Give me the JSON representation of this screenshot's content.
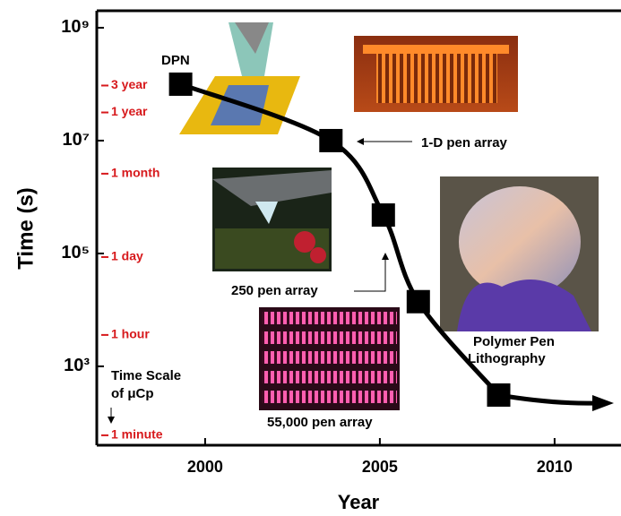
{
  "chart_data": {
    "type": "line",
    "x_label": "Year",
    "y_label": "Time (s)",
    "log_y": true,
    "x": [
      1999.3,
      2003.6,
      2005.1,
      2006.1,
      2008.4
    ],
    "series": [
      {
        "name": "DPN throughput",
        "color": "#000000",
        "values": [
          100000000,
          10000000,
          480000,
          14000,
          310
        ]
      }
    ],
    "xlim": [
      1996.9,
      2011.9
    ],
    "ylim": [
      40,
      2000000000
    ],
    "xticks": [
      2000,
      2005,
      2010
    ],
    "yticks": [
      {
        "value": 1000,
        "label": "10³"
      },
      {
        "value": 100000,
        "label": "10⁵"
      },
      {
        "value": 10000000,
        "label": "10⁷"
      },
      {
        "value": 1000000000,
        "label": "10⁹"
      }
    ],
    "time_ticks_color": "#d7191c",
    "time_ticks": [
      {
        "value": 94608000,
        "label": "3 year"
      },
      {
        "value": 31536000,
        "label": "1 year"
      },
      {
        "value": 2592000,
        "label": "1 month"
      },
      {
        "value": 86400,
        "label": "1 day"
      },
      {
        "value": 3600,
        "label": "1 hour"
      },
      {
        "value": 60,
        "label": "1 minute"
      }
    ],
    "annotations": [
      "DPN",
      "1-D pen array",
      "250 pen array",
      "55,000 pen array",
      "Polymer Pen",
      "Lithography",
      "Time Scale",
      "of μCp"
    ]
  }
}
